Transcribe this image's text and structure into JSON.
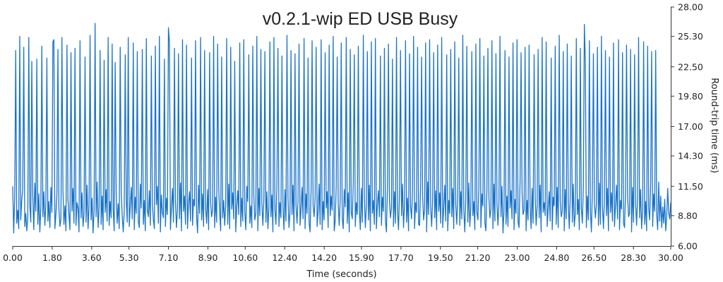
{
  "chart_data": {
    "type": "line",
    "title": "v0.2.1-wip ED USB Busy",
    "xlabel": "Time (seconds)",
    "ylabel": "Round-trip time (ms)",
    "xlim": [
      0,
      30
    ],
    "ylim": [
      6,
      28
    ],
    "x_ticks": [
      "0.00",
      "1.80",
      "3.60",
      "5.30",
      "7.10",
      "8.90",
      "10.60",
      "12.40",
      "14.20",
      "15.90",
      "17.70",
      "19.50",
      "21.20",
      "23.00",
      "24.80",
      "26.50",
      "28.30",
      "30.00"
    ],
    "y_ticks": [
      "6.00",
      "8.80",
      "11.50",
      "14.30",
      "17.00",
      "19.80",
      "22.50",
      "25.30",
      "28.00"
    ],
    "grid": false,
    "legend": "none",
    "series": [
      {
        "color": "#1a73c8",
        "sampling": "regular, 0 to 30 s",
        "values": [
          11.5,
          7.2,
          10.5,
          24.0,
          8.1,
          9.3,
          7.6,
          25.3,
          8.4,
          10.2,
          11.2,
          24.3,
          7.8,
          9.0,
          7.4,
          8.6,
          25.2,
          9.8,
          8.2,
          23.0,
          10.6,
          7.5,
          11.8,
          9.2,
          23.2,
          8.0,
          10.8,
          7.3,
          9.6,
          24.4,
          8.7,
          11.0,
          7.9,
          9.9,
          23.3,
          8.3,
          10.1,
          7.7,
          11.4,
          9.1,
          24.8,
          25.0,
          7.6,
          8.9,
          10.7,
          24.1,
          9.4,
          7.8,
          8.5,
          25.2,
          11.1,
          8.0,
          9.7,
          7.4,
          24.5,
          10.3,
          8.8,
          7.5,
          23.8,
          9.2,
          11.3,
          8.1,
          24.2,
          7.9,
          10.0,
          9.5,
          7.3,
          24.9,
          8.6,
          10.9,
          7.8,
          9.0,
          23.4,
          8.2,
          11.6,
          7.6,
          9.8,
          25.4,
          8.4,
          10.4,
          7.2,
          9.3,
          26.5,
          8.7,
          11.9,
          7.7,
          9.6,
          24.0,
          8.0,
          10.6,
          7.5,
          23.1,
          9.1,
          11.2,
          8.3,
          25.2,
          7.9,
          10.1,
          8.6,
          24.6,
          9.4,
          7.4,
          22.9,
          10.8,
          8.1,
          9.9,
          7.6,
          24.3,
          11.0,
          8.8,
          7.3,
          9.2,
          23.6,
          10.3,
          8.2,
          25.2,
          7.8,
          9.7,
          11.4,
          8.5,
          24.7,
          7.5,
          10.5,
          9.0,
          23.9,
          8.3,
          7.7,
          11.7,
          9.5,
          24.1,
          8.0,
          10.2,
          7.4,
          25.1,
          9.3,
          8.7,
          11.1,
          7.9,
          23.5,
          10.0,
          8.4,
          7.6,
          24.4,
          9.8,
          11.5,
          8.1,
          25.3,
          7.3,
          10.7,
          9.1,
          8.6,
          23.2,
          7.8,
          10.4,
          8.9,
          26.1,
          24.8,
          7.5,
          9.6,
          11.3,
          8.2,
          24.2,
          10.1,
          7.7,
          9.4,
          23.7,
          8.5,
          11.8,
          7.4,
          25.0,
          9.2,
          10.6,
          8.0,
          24.5,
          7.6,
          9.9,
          11.0,
          8.3,
          23.3,
          7.9,
          10.3,
          9.7,
          24.9,
          8.8,
          7.2,
          11.6,
          9.0,
          25.2,
          8.4,
          10.8,
          7.8,
          24.0,
          9.5,
          8.1,
          11.2,
          7.5,
          23.8,
          10.0,
          8.7,
          9.3,
          25.3,
          7.7,
          10.5,
          8.2,
          24.6,
          11.4,
          9.1,
          7.4,
          23.4,
          8.6,
          10.2,
          7.9,
          9.8,
          25.1,
          8.0,
          11.7,
          7.6,
          24.3,
          9.4,
          10.9,
          8.5,
          23.0,
          7.3,
          9.6,
          11.1,
          8.9,
          24.7,
          7.8,
          10.4,
          8.3,
          25.0,
          9.2,
          7.5,
          11.5,
          10.1,
          23.6,
          8.1,
          9.7,
          7.7,
          24.4,
          10.6,
          8.4,
          9.0,
          25.3,
          7.4,
          11.3,
          8.8,
          24.1,
          9.9,
          7.9,
          10.3,
          23.9,
          8.2,
          11.0,
          7.6,
          9.5,
          24.8,
          8.7,
          10.7,
          7.3,
          25.2,
          9.3,
          8.0,
          11.8,
          24.2,
          7.8,
          10.0,
          8.6,
          23.5,
          9.6,
          7.5,
          11.2,
          8.3,
          25.4,
          10.5,
          7.7,
          9.1,
          24.0,
          8.9,
          11.6,
          7.4,
          23.7,
          9.8,
          8.1,
          10.2,
          24.6,
          7.9,
          9.4,
          11.4,
          8.5,
          25.1,
          7.6,
          10.8,
          9.0,
          23.3,
          8.2,
          7.3,
          11.1,
          24.9,
          9.7,
          8.7,
          10.4,
          24.3,
          7.8,
          9.2,
          11.7,
          8.0,
          25.0,
          7.5,
          10.1,
          8.4,
          23.8,
          9.5,
          11.0,
          7.7,
          24.5,
          8.8,
          10.6,
          9.3,
          25.3,
          7.4,
          8.3,
          11.5,
          23.4,
          9.9,
          7.9,
          10.3,
          24.7,
          8.6,
          7.6,
          11.2,
          9.6,
          25.2,
          8.1,
          10.9,
          7.3,
          24.1,
          9.1,
          8.5,
          11.8,
          23.6,
          7.8,
          10.0,
          8.9,
          24.4,
          9.4,
          7.5,
          11.3,
          8.2,
          25.4,
          10.7,
          7.7,
          9.7,
          23.9,
          8.4,
          11.6,
          7.4,
          24.8,
          9.0,
          10.2,
          8.0,
          25.1,
          7.6,
          9.8,
          11.1,
          8.7,
          23.5,
          7.9,
          10.5,
          9.2,
          24.2,
          8.3,
          7.3,
          11.4,
          24.6,
          10.1,
          8.6,
          9.5,
          23.2,
          7.8,
          11.0,
          8.1,
          25.2,
          9.3,
          7.5,
          10.8,
          24.0,
          8.8,
          11.7,
          7.7,
          9.9,
          24.9,
          8.2,
          10.4,
          7.4,
          23.7,
          9.6,
          8.5,
          11.2,
          25.3,
          7.6,
          10.0,
          9.1,
          24.3,
          8.0,
          7.9,
          11.5,
          23.4,
          10.6,
          8.4,
          9.4,
          24.7,
          7.3,
          11.9,
          8.9,
          25.0,
          9.7,
          7.8,
          10.3,
          23.8,
          8.6,
          11.1,
          7.5,
          24.5,
          9.2,
          10.9,
          8.1,
          25.2,
          7.7,
          9.5,
          11.6,
          8.3,
          23.6,
          7.4,
          10.2,
          9.0,
          24.1,
          8.7,
          11.3,
          7.6,
          24.8,
          9.8,
          8.0,
          10.7,
          23.3,
          7.9,
          11.0,
          8.5,
          25.4,
          9.3,
          7.3,
          10.5,
          24.4,
          8.2,
          11.8,
          7.8,
          9.6,
          23.9,
          8.8,
          10.1,
          7.5,
          24.6,
          9.1,
          8.4,
          11.4,
          25.1,
          7.7,
          10.8,
          9.7,
          23.5,
          8.1,
          7.4,
          11.2,
          24.2,
          10.4,
          8.6,
          9.4,
          24.9,
          7.6,
          11.7,
          8.3,
          23.7,
          9.9,
          7.9,
          10.0,
          25.3,
          8.7,
          11.5,
          7.2,
          9.2,
          24.0,
          8.0,
          10.6,
          7.8,
          23.4,
          9.5,
          11.1,
          8.5,
          24.7,
          7.5,
          10.3,
          9.0,
          25.0,
          8.2,
          7.7,
          11.9,
          23.8,
          10.9,
          8.9,
          9.3,
          24.3,
          7.4,
          10.2,
          8.4,
          24.5,
          9.8,
          7.6,
          11.3,
          8.1,
          23.6,
          10.7,
          7.9,
          9.6,
          24.1,
          8.6,
          11.6,
          7.3,
          25.2,
          9.1,
          10.0,
          8.8,
          24.8,
          7.8,
          9.4,
          11.0,
          8.3,
          23.3,
          7.5,
          10.5,
          9.7,
          24.4,
          8.0,
          11.4,
          7.7,
          25.4,
          10.1,
          8.7,
          9.2,
          23.9,
          7.4,
          11.2,
          8.5,
          24.6,
          9.9,
          7.6,
          10.8,
          23.5,
          8.2,
          11.7,
          7.8,
          9.0,
          25.1,
          8.9,
          10.3,
          7.5,
          24.2,
          9.5,
          8.1,
          11.5,
          26.4,
          23.0,
          7.7,
          10.6,
          8.4,
          24.9,
          9.3,
          7.3,
          11.1,
          23.7,
          10.0,
          8.6,
          9.8,
          24.3,
          7.9,
          11.8,
          8.0,
          25.3,
          9.6,
          7.6,
          10.4,
          24.0,
          8.8,
          11.3,
          7.4,
          23.4,
          9.1,
          10.9,
          8.3,
          24.7,
          7.8,
          9.7,
          11.6,
          8.5,
          25.0,
          7.5,
          10.2,
          9.4,
          23.8,
          8.1,
          7.7,
          11.0,
          24.5,
          10.7,
          8.7,
          9.0,
          24.1,
          7.3,
          11.4,
          8.2,
          23.6,
          9.9,
          7.9,
          10.5,
          25.2,
          8.6,
          11.2,
          7.6,
          9.3,
          24.8,
          8.0,
          10.1,
          7.4,
          24.4,
          9.5,
          8.4,
          11.7,
          23.9,
          7.8,
          10.8,
          9.2,
          24.0,
          8.9,
          7.5,
          11.9,
          8.3,
          10.6,
          7.7,
          9.6,
          8.1,
          10.3,
          7.4,
          8.8,
          11.3,
          9.0,
          8.5,
          10.0
        ]
      }
    ]
  }
}
